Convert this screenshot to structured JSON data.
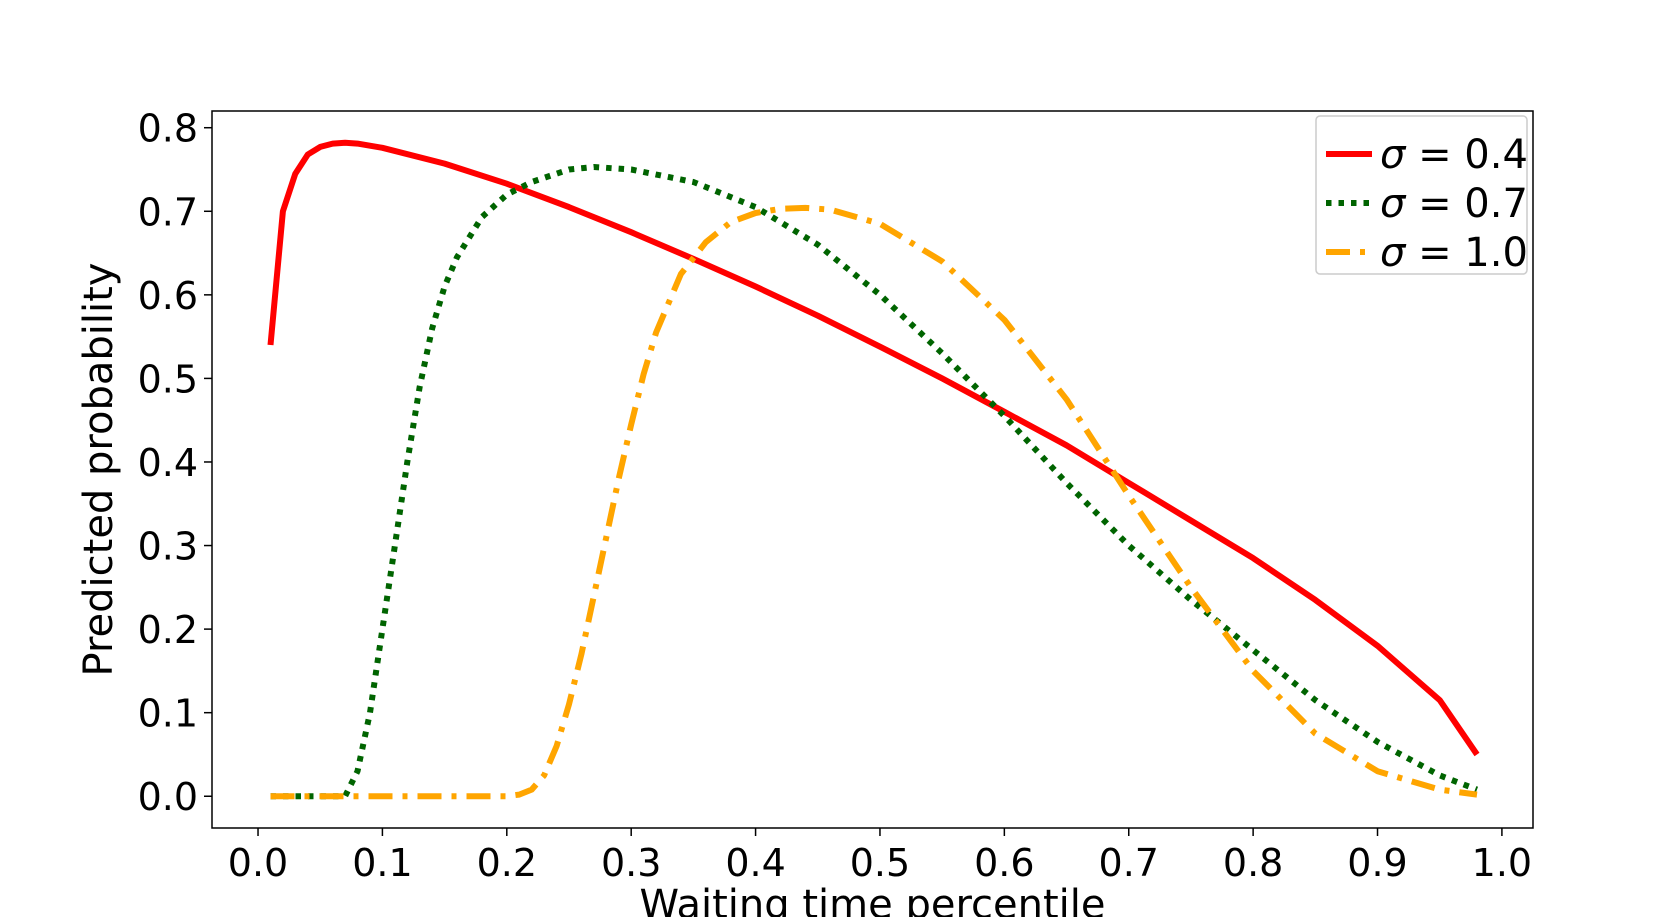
{
  "chart_data": {
    "type": "line",
    "xlabel": "Waiting time percentile",
    "ylabel": "Predicted probability",
    "xlim": [
      -0.037,
      1.025
    ],
    "ylim": [
      -0.038,
      0.82
    ],
    "xticks": [
      "0.0",
      "0.1",
      "0.2",
      "0.3",
      "0.4",
      "0.5",
      "0.6",
      "0.7",
      "0.8",
      "0.9",
      "1.0"
    ],
    "yticks": [
      "0.0",
      "0.1",
      "0.2",
      "0.3",
      "0.4",
      "0.5",
      "0.6",
      "0.7",
      "0.8"
    ],
    "grid": false,
    "legend_position": "top-right",
    "series": [
      {
        "name": "σ = 0.4",
        "legend_symbol": "σ",
        "legend_value": "0.4",
        "color": "#ff0000",
        "style": "solid",
        "x": [
          0.01,
          0.02,
          0.03,
          0.04,
          0.05,
          0.06,
          0.07,
          0.08,
          0.1,
          0.15,
          0.2,
          0.25,
          0.3,
          0.35,
          0.4,
          0.45,
          0.5,
          0.55,
          0.6,
          0.65,
          0.7,
          0.75,
          0.8,
          0.85,
          0.9,
          0.95,
          0.98
        ],
        "y": [
          0.54,
          0.7,
          0.745,
          0.768,
          0.777,
          0.781,
          0.782,
          0.781,
          0.776,
          0.757,
          0.733,
          0.705,
          0.675,
          0.643,
          0.61,
          0.575,
          0.538,
          0.5,
          0.46,
          0.42,
          0.375,
          0.33,
          0.285,
          0.235,
          0.18,
          0.115,
          0.05
        ]
      },
      {
        "name": "σ = 0.7",
        "legend_symbol": "σ",
        "legend_value": "0.7",
        "color": "#006400",
        "style": "dotted",
        "x": [
          0.01,
          0.07,
          0.08,
          0.09,
          0.1,
          0.11,
          0.12,
          0.13,
          0.14,
          0.15,
          0.16,
          0.18,
          0.2,
          0.22,
          0.25,
          0.27,
          0.3,
          0.35,
          0.4,
          0.45,
          0.5,
          0.55,
          0.6,
          0.65,
          0.7,
          0.75,
          0.8,
          0.85,
          0.9,
          0.95,
          0.98
        ],
        "y": [
          0.0,
          0.0,
          0.03,
          0.1,
          0.2,
          0.3,
          0.4,
          0.49,
          0.56,
          0.61,
          0.645,
          0.693,
          0.72,
          0.735,
          0.75,
          0.753,
          0.75,
          0.735,
          0.705,
          0.66,
          0.6,
          0.53,
          0.455,
          0.375,
          0.3,
          0.235,
          0.175,
          0.115,
          0.065,
          0.025,
          0.008
        ]
      },
      {
        "name": "σ = 1.0",
        "legend_symbol": "σ",
        "legend_value": "1.0",
        "color": "#ffa500",
        "style": "dashdot",
        "x": [
          0.01,
          0.2,
          0.21,
          0.22,
          0.23,
          0.24,
          0.25,
          0.26,
          0.27,
          0.28,
          0.29,
          0.3,
          0.31,
          0.32,
          0.34,
          0.36,
          0.38,
          0.4,
          0.42,
          0.44,
          0.46,
          0.5,
          0.55,
          0.6,
          0.65,
          0.7,
          0.75,
          0.8,
          0.85,
          0.9,
          0.95,
          0.98
        ],
        "y": [
          0.0,
          0.0,
          0.002,
          0.008,
          0.025,
          0.06,
          0.11,
          0.17,
          0.24,
          0.31,
          0.38,
          0.445,
          0.505,
          0.555,
          0.625,
          0.663,
          0.687,
          0.698,
          0.703,
          0.704,
          0.702,
          0.685,
          0.64,
          0.57,
          0.475,
          0.36,
          0.25,
          0.15,
          0.075,
          0.03,
          0.008,
          0.002
        ]
      }
    ]
  }
}
